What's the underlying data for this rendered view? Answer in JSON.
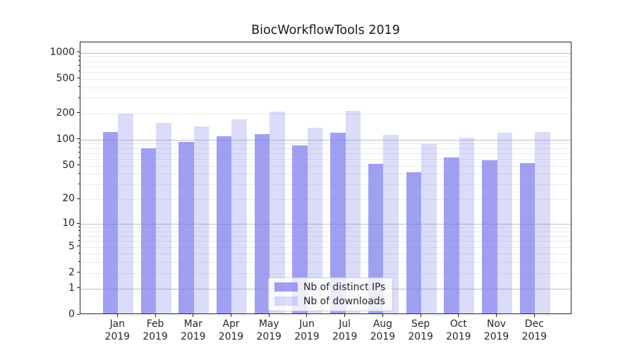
{
  "chart_data": {
    "type": "bar",
    "title": "BiocWorkflowTools 2019",
    "categories": [
      "Jan",
      "Feb",
      "Mar",
      "Apr",
      "May",
      "Jun",
      "Jul",
      "Aug",
      "Sep",
      "Oct",
      "Nov",
      "Dec"
    ],
    "year": "2019",
    "series": [
      {
        "name": "Nb of distinct IPs",
        "fill": "rgba(124,124,238,0.72)",
        "values": [
          118,
          76,
          91,
          105,
          112,
          83,
          116,
          51,
          40,
          60,
          56,
          52
        ]
      },
      {
        "name": "Nb of downloads",
        "fill": "rgba(124,124,238,0.28)",
        "values": [
          192,
          152,
          136,
          166,
          204,
          131,
          207,
          109,
          86,
          101,
          115,
          119
        ]
      }
    ],
    "yscale": "log1p",
    "ylim": [
      0,
      1300
    ],
    "yticks": [
      0,
      1,
      2,
      5,
      10,
      20,
      50,
      100,
      200,
      500,
      1000
    ],
    "grid": true,
    "legend_position": "lower center"
  },
  "axes": {
    "spine_color": "#262626",
    "tick_color": "#262626",
    "major_grid_color": "#bdbdbd",
    "minor_grid_color": "#ebebeb",
    "major_grid_values": [
      1,
      10,
      100,
      1000
    ],
    "minor_grid_values": [
      2,
      3,
      4,
      5,
      6,
      7,
      8,
      9,
      20,
      30,
      40,
      50,
      60,
      70,
      80,
      90,
      200,
      300,
      400,
      500,
      600,
      700,
      800,
      900
    ],
    "minor_tick_values": [
      3,
      4,
      6,
      7,
      8,
      9,
      30,
      40,
      60,
      70,
      80,
      90,
      300,
      400,
      600,
      700,
      800,
      900
    ]
  }
}
